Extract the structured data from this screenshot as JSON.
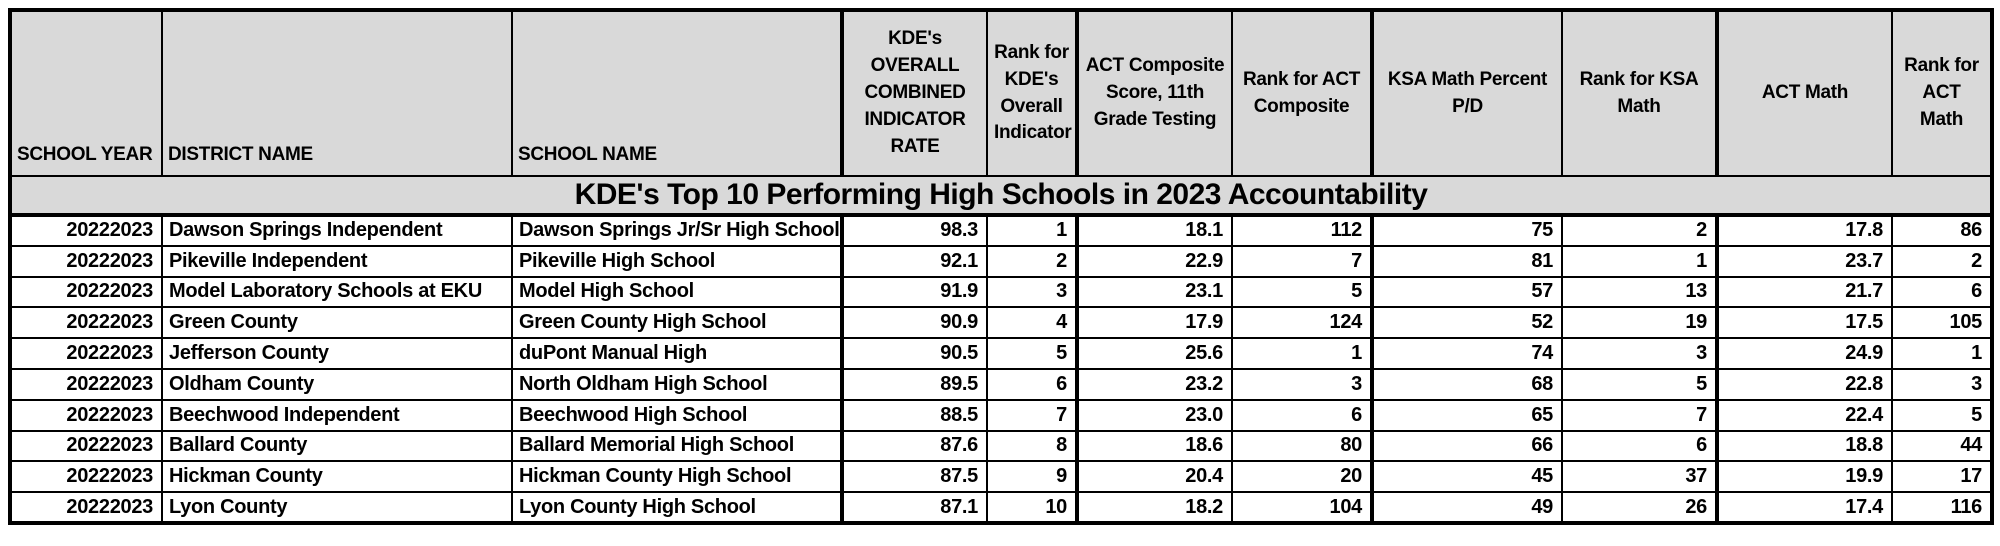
{
  "colors": {
    "header_bg": "#d9d9d9",
    "row_bg": "#ffffff",
    "border": "#000000",
    "text": "#000000"
  },
  "chart_data": {
    "type": "table",
    "title": "KDE's Top 10 Performing High Schools in 2023 Accountability",
    "columns": [
      "SCHOOL YEAR",
      "DISTRICT NAME",
      "SCHOOL NAME",
      "KDE's OVERALL COMBINED INDICATOR RATE",
      "Rank for KDE's Overall Indicator",
      "ACT Composite Score, 11th Grade Testing",
      "Rank for ACT Composite",
      "KSA Math Percent P/D",
      "Rank for KSA Math",
      "ACT Math",
      "Rank for ACT Math"
    ],
    "rows": [
      [
        "20222023",
        "Dawson Springs Independent",
        "Dawson Springs Jr/Sr High School",
        "98.3",
        "1",
        "18.1",
        "112",
        "75",
        "2",
        "17.8",
        "86"
      ],
      [
        "20222023",
        "Pikeville Independent",
        "Pikeville High School",
        "92.1",
        "2",
        "22.9",
        "7",
        "81",
        "1",
        "23.7",
        "2"
      ],
      [
        "20222023",
        "Model Laboratory Schools at EKU",
        "Model High School",
        "91.9",
        "3",
        "23.1",
        "5",
        "57",
        "13",
        "21.7",
        "6"
      ],
      [
        "20222023",
        "Green County",
        "Green County High School",
        "90.9",
        "4",
        "17.9",
        "124",
        "52",
        "19",
        "17.5",
        "105"
      ],
      [
        "20222023",
        "Jefferson County",
        "duPont Manual High",
        "90.5",
        "5",
        "25.6",
        "1",
        "74",
        "3",
        "24.9",
        "1"
      ],
      [
        "20222023",
        "Oldham County",
        "North Oldham High School",
        "89.5",
        "6",
        "23.2",
        "3",
        "68",
        "5",
        "22.8",
        "3"
      ],
      [
        "20222023",
        "Beechwood Independent",
        "Beechwood High School",
        "88.5",
        "7",
        "23.0",
        "6",
        "65",
        "7",
        "22.4",
        "5"
      ],
      [
        "20222023",
        "Ballard County",
        "Ballard Memorial High School",
        "87.6",
        "8",
        "18.6",
        "80",
        "66",
        "6",
        "18.8",
        "44"
      ],
      [
        "20222023",
        "Hickman County",
        "Hickman County High School",
        "87.5",
        "9",
        "20.4",
        "20",
        "45",
        "37",
        "19.9",
        "17"
      ],
      [
        "20222023",
        "Lyon County",
        "Lyon County High School",
        "87.1",
        "10",
        "18.2",
        "104",
        "49",
        "26",
        "17.4",
        "116"
      ]
    ]
  }
}
